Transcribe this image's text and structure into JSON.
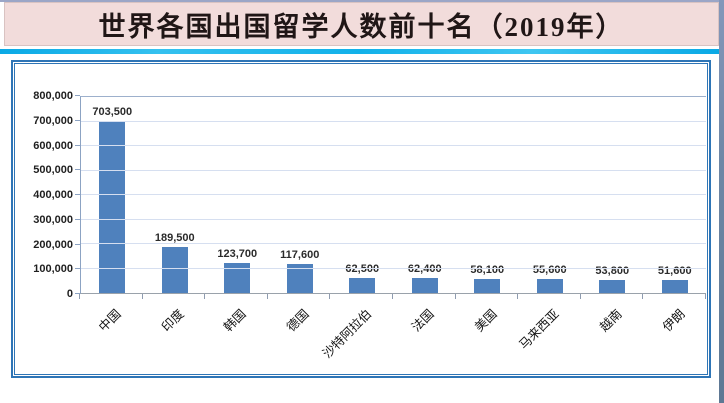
{
  "page": {
    "title": "世界各国出国留学人数前十名（2019年）"
  },
  "chart_data": {
    "type": "bar",
    "title": "世界各国出国留学人数前十名（2019年）",
    "categories": [
      "中国",
      "印度",
      "韩国",
      "德国",
      "沙特阿拉伯",
      "法国",
      "美国",
      "马来西亚",
      "越南",
      "伊朗"
    ],
    "values": [
      703500,
      189500,
      123700,
      117600,
      62500,
      62400,
      58100,
      55600,
      53800,
      51600
    ],
    "value_labels": [
      "703,500",
      "189,500",
      "123,700",
      "117,600",
      "62,500",
      "62,400",
      "58,100",
      "55,600",
      "53,800",
      "51,600"
    ],
    "yticks_top_to_bottom": [
      "800,000",
      "700,000",
      "600,000",
      "500,000",
      "400,000",
      "300,000",
      "200,000",
      "100,000",
      "0"
    ],
    "ylim": [
      0,
      800000
    ],
    "xlabel": "",
    "ylabel": "",
    "grid": true,
    "legend": "none",
    "x_label_rotation_deg": 45,
    "colors": {
      "bar": "#4F81BD",
      "gridline": "#D6DFF0",
      "axis": "#8CA3C3",
      "chart_frame_border": "#2E75B6",
      "title_background": "#F2DCDB",
      "title_text": "#201616",
      "divider_band": "#12B1E9",
      "slide_edge": "#6E87A6"
    }
  }
}
